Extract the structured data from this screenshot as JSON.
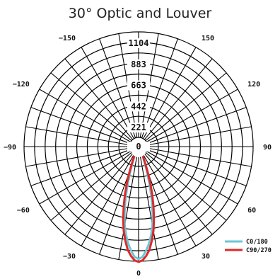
{
  "chart_data": {
    "type": "polar",
    "title": "30° Optic and Louver",
    "radial_ticks": [
      "0",
      "221",
      "442",
      "663",
      "883",
      "1104"
    ],
    "r_max": 1104,
    "angle_labels": [
      {
        "text": "0",
        "angle": 0
      },
      {
        "text": "30",
        "angle": 30
      },
      {
        "text": "60",
        "angle": 60
      },
      {
        "text": "90",
        "angle": 90
      },
      {
        "text": "120",
        "angle": 120
      },
      {
        "text": "150",
        "angle": 150
      },
      {
        "text": "−30",
        "angle": -30
      },
      {
        "text": "−60",
        "angle": -60
      },
      {
        "text": "−90",
        "angle": -90
      },
      {
        "text": "−120",
        "angle": -120
      },
      {
        "text": "−150",
        "angle": -150
      }
    ],
    "grid": true,
    "legend_position": "bottom-right",
    "series": [
      {
        "name": "C0/180",
        "color": "#6cc6d6",
        "points": [
          [
            0,
            1080
          ],
          [
            2,
            1060
          ],
          [
            4,
            1000
          ],
          [
            6,
            930
          ],
          [
            8,
            840
          ],
          [
            10,
            740
          ],
          [
            12,
            610
          ],
          [
            14,
            470
          ],
          [
            16,
            330
          ],
          [
            18,
            200
          ],
          [
            20,
            100
          ],
          [
            22,
            40
          ],
          [
            24,
            0
          ]
        ]
      },
      {
        "name": "C90/270",
        "color": "#e02828",
        "points": [
          [
            0,
            1110
          ],
          [
            2,
            1095
          ],
          [
            4,
            1050
          ],
          [
            6,
            990
          ],
          [
            8,
            900
          ],
          [
            10,
            800
          ],
          [
            12,
            680
          ],
          [
            14,
            550
          ],
          [
            16,
            420
          ],
          [
            18,
            290
          ],
          [
            20,
            170
          ],
          [
            22,
            80
          ],
          [
            24,
            20
          ],
          [
            26,
            0
          ]
        ]
      }
    ]
  }
}
